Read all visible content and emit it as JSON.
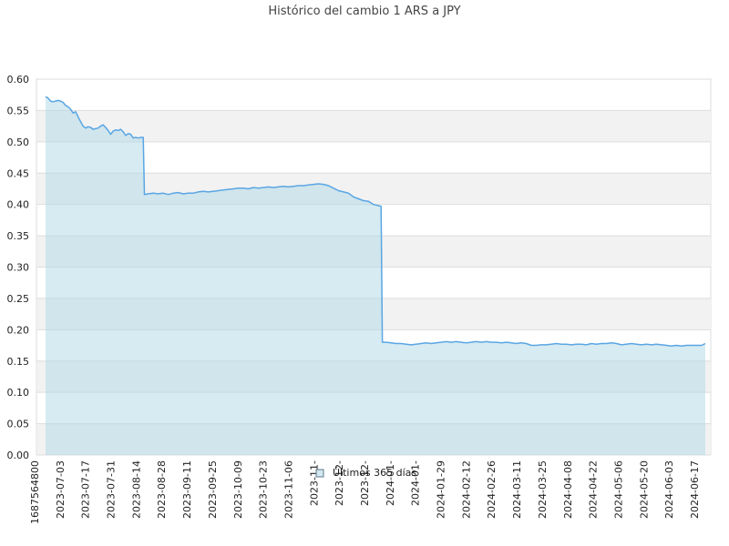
{
  "chart_data": {
    "type": "area",
    "title": "Histórico del cambio 1 ARS a JPY",
    "xlabel": "",
    "ylabel": "",
    "ylim": [
      0,
      0.6
    ],
    "yticks": [
      "0.00",
      "0.05",
      "0.10",
      "0.15",
      "0.20",
      "0.25",
      "0.30",
      "0.35",
      "0.40",
      "0.45",
      "0.50",
      "0.55",
      "0.60"
    ],
    "x_tick_labels": [
      "1687564800",
      "2023-07-03",
      "2023-07-17",
      "2023-07-31",
      "2023-08-14",
      "2023-08-28",
      "2023-09-11",
      "2023-09-25",
      "2023-10-09",
      "2023-10-23",
      "2023-11-06",
      "2023-11-",
      "2023-12-",
      "2023-12-",
      "2024-01-",
      "2024-01-",
      "2024-01-29",
      "2024-02-12",
      "2024-02-26",
      "2024-03-11",
      "2024-03-25",
      "2024-04-08",
      "2024-04-22",
      "2024-05-06",
      "2024-05-20",
      "2024-06-03",
      "2024-06-17"
    ],
    "grid": true,
    "grid_bands": true,
    "legend": "bottom-center",
    "colors": {
      "line": "#5aa6e4",
      "fill": "#add8e6",
      "band": "#f2f2f2",
      "grid": "#dddddd"
    },
    "series": [
      {
        "name": "Últimos 365 días",
        "points": [
          [
            0,
            0.572
          ],
          [
            2,
            0.57
          ],
          [
            4,
            0.565
          ],
          [
            6,
            0.564
          ],
          [
            8,
            0.565
          ],
          [
            10,
            0.566
          ],
          [
            12,
            0.565
          ],
          [
            14,
            0.563
          ],
          [
            16,
            0.558
          ],
          [
            18,
            0.556
          ],
          [
            20,
            0.552
          ],
          [
            22,
            0.546
          ],
          [
            24,
            0.548
          ],
          [
            26,
            0.54
          ],
          [
            28,
            0.532
          ],
          [
            30,
            0.525
          ],
          [
            32,
            0.522
          ],
          [
            34,
            0.524
          ],
          [
            36,
            0.523
          ],
          [
            38,
            0.52
          ],
          [
            40,
            0.521
          ],
          [
            42,
            0.522
          ],
          [
            44,
            0.525
          ],
          [
            46,
            0.527
          ],
          [
            48,
            0.523
          ],
          [
            50,
            0.518
          ],
          [
            52,
            0.512
          ],
          [
            54,
            0.517
          ],
          [
            56,
            0.519
          ],
          [
            58,
            0.518
          ],
          [
            60,
            0.52
          ],
          [
            62,
            0.516
          ],
          [
            64,
            0.51
          ],
          [
            66,
            0.513
          ],
          [
            68,
            0.512
          ],
          [
            70,
            0.506
          ],
          [
            72,
            0.507
          ],
          [
            74,
            0.506
          ],
          [
            76,
            0.507
          ],
          [
            78,
            0.507
          ],
          [
            79,
            0.416
          ],
          [
            82,
            0.417
          ],
          [
            86,
            0.418
          ],
          [
            90,
            0.417
          ],
          [
            94,
            0.418
          ],
          [
            98,
            0.416
          ],
          [
            102,
            0.418
          ],
          [
            106,
            0.419
          ],
          [
            110,
            0.417
          ],
          [
            114,
            0.418
          ],
          [
            118,
            0.418
          ],
          [
            122,
            0.42
          ],
          [
            126,
            0.421
          ],
          [
            130,
            0.42
          ],
          [
            134,
            0.421
          ],
          [
            138,
            0.422
          ],
          [
            142,
            0.423
          ],
          [
            146,
            0.424
          ],
          [
            150,
            0.425
          ],
          [
            154,
            0.426
          ],
          [
            158,
            0.426
          ],
          [
            162,
            0.425
          ],
          [
            166,
            0.427
          ],
          [
            170,
            0.426
          ],
          [
            174,
            0.427
          ],
          [
            178,
            0.428
          ],
          [
            182,
            0.427
          ],
          [
            186,
            0.428
          ],
          [
            190,
            0.429
          ],
          [
            194,
            0.428
          ],
          [
            198,
            0.429
          ],
          [
            202,
            0.43
          ],
          [
            206,
            0.43
          ],
          [
            210,
            0.431
          ],
          [
            214,
            0.432
          ],
          [
            218,
            0.433
          ],
          [
            222,
            0.432
          ],
          [
            226,
            0.43
          ],
          [
            230,
            0.426
          ],
          [
            234,
            0.422
          ],
          [
            238,
            0.42
          ],
          [
            242,
            0.418
          ],
          [
            246,
            0.412
          ],
          [
            250,
            0.409
          ],
          [
            254,
            0.406
          ],
          [
            258,
            0.405
          ],
          [
            262,
            0.4
          ],
          [
            266,
            0.398
          ],
          [
            268,
            0.397
          ],
          [
            269,
            0.18
          ],
          [
            272,
            0.18
          ],
          [
            276,
            0.179
          ],
          [
            280,
            0.178
          ],
          [
            284,
            0.178
          ],
          [
            288,
            0.177
          ],
          [
            292,
            0.176
          ],
          [
            296,
            0.177
          ],
          [
            300,
            0.178
          ],
          [
            304,
            0.179
          ],
          [
            308,
            0.178
          ],
          [
            312,
            0.179
          ],
          [
            316,
            0.18
          ],
          [
            320,
            0.181
          ],
          [
            324,
            0.18
          ],
          [
            328,
            0.181
          ],
          [
            332,
            0.18
          ],
          [
            336,
            0.179
          ],
          [
            340,
            0.18
          ],
          [
            344,
            0.181
          ],
          [
            348,
            0.18
          ],
          [
            352,
            0.181
          ],
          [
            356,
            0.18
          ],
          [
            360,
            0.18
          ],
          [
            364,
            0.179
          ],
          [
            368,
            0.18
          ],
          [
            372,
            0.179
          ],
          [
            376,
            0.178
          ],
          [
            380,
            0.179
          ],
          [
            384,
            0.178
          ],
          [
            388,
            0.175
          ],
          [
            392,
            0.175
          ],
          [
            396,
            0.176
          ],
          [
            400,
            0.176
          ],
          [
            404,
            0.177
          ],
          [
            408,
            0.178
          ],
          [
            412,
            0.177
          ],
          [
            416,
            0.177
          ],
          [
            420,
            0.176
          ],
          [
            424,
            0.177
          ],
          [
            428,
            0.177
          ],
          [
            432,
            0.176
          ],
          [
            436,
            0.178
          ],
          [
            440,
            0.177
          ],
          [
            444,
            0.178
          ],
          [
            448,
            0.178
          ],
          [
            452,
            0.179
          ],
          [
            456,
            0.178
          ],
          [
            460,
            0.176
          ],
          [
            464,
            0.177
          ],
          [
            468,
            0.178
          ],
          [
            472,
            0.177
          ],
          [
            476,
            0.176
          ],
          [
            480,
            0.177
          ],
          [
            484,
            0.176
          ],
          [
            488,
            0.177
          ],
          [
            492,
            0.176
          ],
          [
            496,
            0.175
          ],
          [
            500,
            0.174
          ],
          [
            504,
            0.175
          ],
          [
            508,
            0.174
          ],
          [
            512,
            0.175
          ],
          [
            516,
            0.175
          ],
          [
            520,
            0.175
          ],
          [
            524,
            0.175
          ],
          [
            527,
            0.178
          ]
        ]
      }
    ]
  }
}
